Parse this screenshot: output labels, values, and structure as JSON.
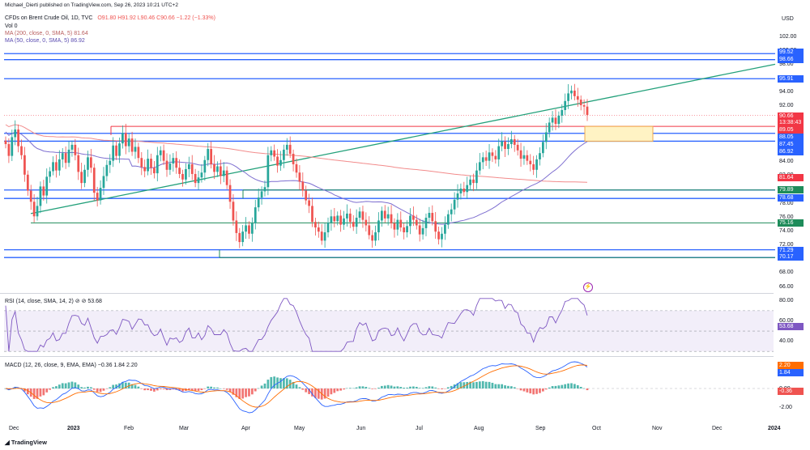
{
  "header": {
    "author_line": "Michael_Dierti published on TradingView.com, Sep 26, 2023 10:21 UTC+2",
    "symbol_line": "CFDs on Brent Crude Oil, 1D, TVC",
    "ohlc": "O91.80 H91.92 L90.46 C90.66 −1.22 (−1.33%)",
    "vol": "Vol  0",
    "ma200": "MA (200, close, 0, SMA, 5)  81.64",
    "ma50": "MA (50, close, 0, SMA, 5)  86.92",
    "currency": "USD"
  },
  "colors": {
    "up": "#26a69a",
    "down": "#ef5350",
    "ma200": "#f28b8b",
    "ma50": "#7e6fd0",
    "blue_level": "#2962ff",
    "green_level": "#1e8c5a",
    "trendline": "#22a07a",
    "rsi_line": "#7e57c2",
    "macd_line": "#2962ff",
    "signal_line": "#ff6d00"
  },
  "chart_data": [
    {
      "type": "candlestick",
      "symbol": "CFDs on Brent Crude Oil",
      "interval": "1D",
      "x_ticks": [
        "Dec",
        "2023",
        "Feb",
        "Mar",
        "Apr",
        "May",
        "Jun",
        "Jul",
        "Aug",
        "Sep",
        "Oct",
        "Nov",
        "Dec",
        "2024"
      ],
      "y_ticks": [
        "66.00",
        "68.00",
        "70.00",
        "72.00",
        "74.00",
        "76.00",
        "78.00",
        "80.00",
        "82.00",
        "84.00",
        "86.00",
        "88.00",
        "90.00",
        "92.00",
        "94.00",
        "96.00",
        "98.00",
        "100.00",
        "102.00"
      ],
      "ylim": [
        65,
        103
      ],
      "last_close": 90.66,
      "countdown": "13:38:43",
      "closes": [
        86.5,
        84.8,
        87.5,
        88.6,
        86.2,
        84.9,
        82.1,
        79.8,
        78.2,
        76.1,
        77.6,
        80.4,
        79.1,
        81.8,
        82.6,
        83.9,
        82.7,
        84.3,
        85.2,
        83.8,
        85.7,
        86.4,
        84.9,
        82.5,
        80.9,
        82.8,
        84.6,
        83.1,
        79.5,
        78.4,
        80.2,
        81.9,
        83.5,
        84.1,
        86.3,
        84.8,
        86.6,
        88.1,
        86.2,
        87.3,
        85.4,
        86.1,
        84.5,
        83.2,
        82.6,
        84.4,
        83.1,
        82.3,
        84.9,
        85.6,
        84.1,
        82.8,
        83.7,
        84.5,
        83.1,
        82.2,
        81.4,
        82.9,
        83.6,
        82.2,
        80.9,
        81.7,
        82.4,
        84.2,
        85.8,
        83.6,
        82.5,
        83.3,
        81.9,
        82.7,
        80.6,
        78.2,
        75.5,
        73.7,
        72.4,
        73.9,
        74.8,
        73.6,
        75.1,
        77.4,
        78.8,
        79.7,
        80.3,
        84.9,
        85.6,
        84.7,
        83.4,
        84.2,
        85.7,
        86.4,
        85.1,
        83.6,
        82.4,
        81.1,
        79.8,
        78.4,
        77.6,
        75.3,
        74.5,
        73.9,
        72.6,
        73.8,
        75.2,
        76.1,
        75.4,
        76.2,
        74.9,
        75.8,
        76.5,
        75.3,
        74.6,
        75.9,
        76.8,
        75.6,
        74.8,
        73.4,
        72.6,
        73.8,
        75.5,
        76.9,
        75.8,
        76.4,
        75.1,
        74.2,
        75.6,
        74.5,
        73.8,
        74.7,
        76.2,
        75.6,
        74.8,
        73.5,
        74.4,
        75.9,
        76.6,
        75.4,
        73.9,
        72.8,
        73.6,
        74.9,
        76.4,
        77.1,
        78.5,
        79.4,
        80.1,
        79.6,
        80.6,
        81.4,
        80.9,
        82.7,
        83.9,
        84.6,
        84.1,
        85.3,
        84.8,
        84.3,
        86.2,
        86.9,
        85.8,
        86.5,
        87.2,
        86.4,
        85.6,
        84.4,
        84.9,
        84.1,
        83.6,
        82.8,
        84.3,
        85.2,
        86.8,
        88.2,
        89.6,
        90.3,
        89.4,
        90.6,
        91.4,
        92.7,
        93.8,
        94.2,
        93.4,
        92.9,
        92.1,
        91.9,
        90.7
      ]
    },
    {
      "type": "horizontal_levels",
      "blue_levels": [
        99.52,
        98.66,
        95.91,
        88.05,
        86.92,
        79.89,
        78.68,
        71.29,
        70.17
      ],
      "green_levels": [
        79.89,
        75.16,
        70.17
      ],
      "price_labels": [
        {
          "label": "99.52",
          "color": "#2962ff"
        },
        {
          "label": "98.66",
          "color": "#2962ff"
        },
        {
          "label": "95.91",
          "color": "#2962ff"
        },
        {
          "label": "90.66",
          "color": "#f23645"
        },
        {
          "label": "13:38:43",
          "color": "#f23645"
        },
        {
          "label": "89.05",
          "color": "#f23645"
        },
        {
          "label": "88.05",
          "color": "#2962ff"
        },
        {
          "label": "87.45",
          "color": "#2962ff"
        },
        {
          "label": "86.92",
          "color": "#2962ff"
        },
        {
          "label": "81.64",
          "color": "#f23645"
        },
        {
          "label": "79.89",
          "color": "#1e8c5a"
        },
        {
          "label": "78.68",
          "color": "#2962ff"
        },
        {
          "label": "75.16",
          "color": "#1e8c5a"
        },
        {
          "label": "71.29",
          "color": "#2962ff"
        },
        {
          "label": "70.17",
          "color": "#2962ff"
        }
      ]
    },
    {
      "type": "line",
      "indicator": "RSI (14, close, SMA, 14, 2)",
      "legend": "RSI (14, close, SMA, 14, 2)  ⊘  ⊘  53.68",
      "y_ticks": [
        "40.00",
        "60.00",
        "80.00"
      ],
      "band": [
        30,
        70
      ],
      "last_value": "53.68"
    },
    {
      "type": "line",
      "indicator": "MACD (12, 26, close, 9, EMA, EMA)",
      "legend": "MACD (12, 26, close, 9, EMA, EMA)  −0.36  1.84  2.20",
      "y_ticks": [
        "2.00",
        "0.00",
        "-2.00"
      ],
      "signal_value": "2.20",
      "macd_value": "1.84",
      "histogram_value": "-0.36"
    }
  ],
  "footer": {
    "logo_text": "TradingView"
  }
}
